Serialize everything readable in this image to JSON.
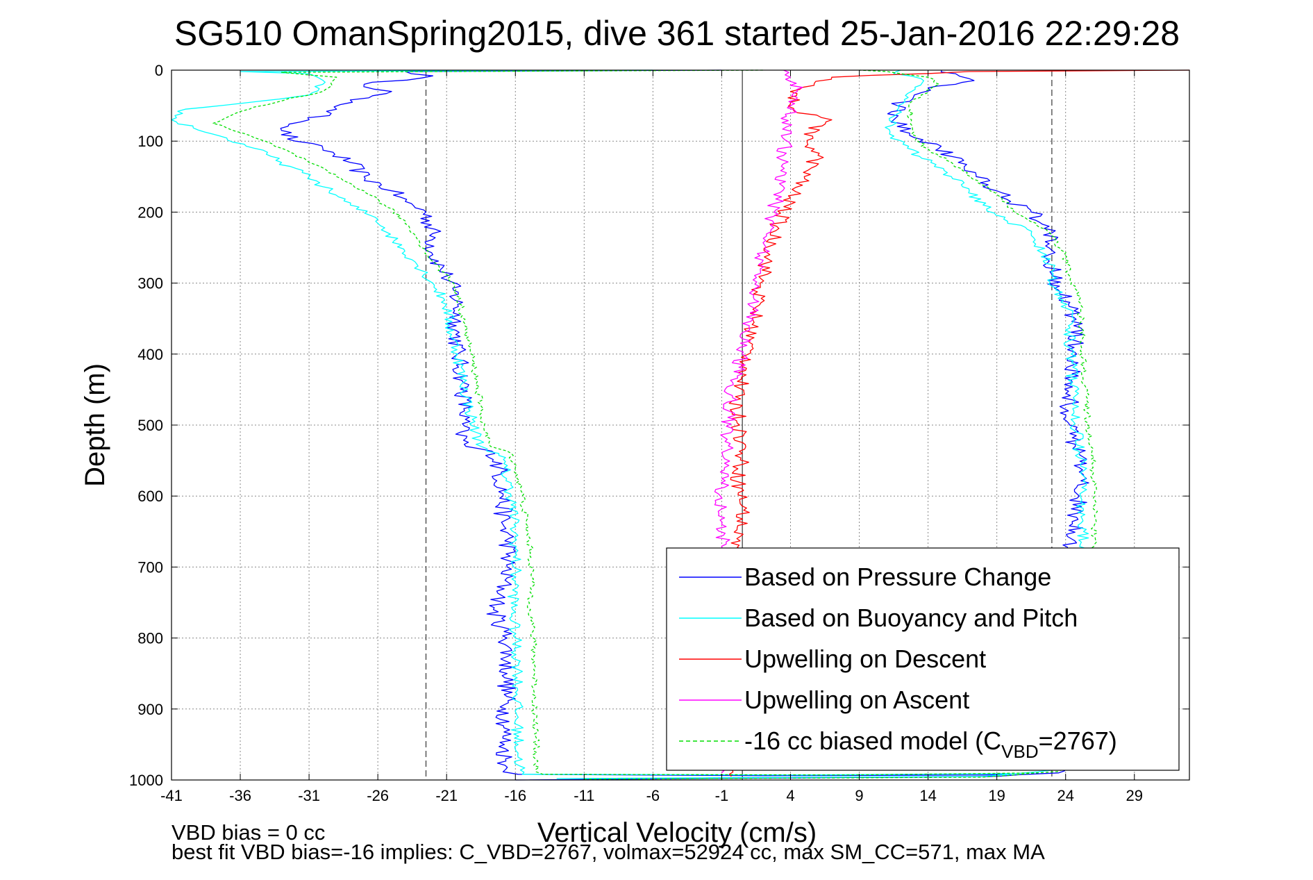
{
  "chart_data": {
    "type": "line",
    "title": "SG510 OmanSpring2015, dive 361 started 25-Jan-2016 22:29:28",
    "xlabel": "Vertical Velocity (cm/s)",
    "ylabel": "Depth (m)",
    "xlim": [
      -41,
      33
    ],
    "ylim": [
      1000,
      0
    ],
    "y_reversed": true,
    "grid": true,
    "x_ticks": [
      -41,
      -36,
      -31,
      -26,
      -21,
      -16,
      -11,
      -6,
      -1,
      4,
      9,
      14,
      19,
      24,
      29
    ],
    "y_ticks": [
      0,
      100,
      200,
      300,
      400,
      500,
      600,
      700,
      800,
      900,
      1000
    ],
    "legend_position": "bottom-right",
    "reference_lines": [
      {
        "kind": "dashed",
        "x": -22.5
      },
      {
        "kind": "solid",
        "x": 0.5
      },
      {
        "kind": "dashed",
        "x": 23
      }
    ],
    "series": [
      {
        "name": "Based on Pressure Change",
        "color": "#0000ff",
        "style": "solid",
        "descent": [
          [
            -1,
            0
          ],
          [
            -24,
            2
          ],
          [
            -22,
            8
          ],
          [
            -27,
            20
          ],
          [
            -25,
            30
          ],
          [
            -28,
            42
          ],
          [
            -29,
            55
          ],
          [
            -31,
            70
          ],
          [
            -33,
            85
          ],
          [
            -32,
            100
          ],
          [
            -30,
            110
          ],
          [
            -28,
            130
          ],
          [
            -27,
            150
          ],
          [
            -25,
            170
          ],
          [
            -24,
            185
          ],
          [
            -22.5,
            200
          ],
          [
            -22,
            230
          ],
          [
            -22,
            260
          ],
          [
            -21,
            290
          ],
          [
            -20.5,
            310
          ],
          [
            -20.2,
            330
          ],
          [
            -20.3,
            360
          ],
          [
            -20.2,
            400
          ],
          [
            -19.8,
            440
          ],
          [
            -19.7,
            480
          ],
          [
            -20,
            510
          ],
          [
            -19.6,
            530
          ],
          [
            -17.5,
            540
          ],
          [
            -17.2,
            560
          ],
          [
            -16.9,
            600
          ],
          [
            -16.9,
            640
          ],
          [
            -16.5,
            660
          ],
          [
            -16.6,
            700
          ],
          [
            -17,
            740
          ],
          [
            -17.6,
            760
          ],
          [
            -16.6,
            800
          ],
          [
            -16.6,
            850
          ],
          [
            -16.7,
            900
          ],
          [
            -16.8,
            950
          ],
          [
            -16.7,
            985
          ],
          [
            -15.8,
            992
          ],
          [
            2,
            994
          ],
          [
            18,
            993
          ],
          [
            20,
            992
          ]
        ],
        "ascent": [
          [
            -16,
            1000
          ],
          [
            19,
            995
          ],
          [
            23.5,
            990
          ],
          [
            24,
            970
          ],
          [
            24.2,
            940
          ],
          [
            24.5,
            900
          ],
          [
            24.5,
            860
          ],
          [
            24.6,
            800
          ],
          [
            24.6,
            760
          ],
          [
            24.8,
            720
          ],
          [
            24.6,
            690
          ],
          [
            24.4,
            660
          ],
          [
            24.8,
            630
          ],
          [
            25,
            600
          ],
          [
            25,
            560
          ],
          [
            24.7,
            530
          ],
          [
            24.3,
            500
          ],
          [
            24.2,
            480
          ],
          [
            24.5,
            440
          ],
          [
            24.8,
            400
          ],
          [
            24.6,
            360
          ],
          [
            24.2,
            330
          ],
          [
            23.5,
            310
          ],
          [
            23.1,
            290
          ],
          [
            22.8,
            260
          ],
          [
            22.8,
            220
          ],
          [
            21.5,
            200
          ],
          [
            20,
            185
          ],
          [
            19,
            170
          ],
          [
            17.5,
            150
          ],
          [
            16.2,
            130
          ],
          [
            14.8,
            110
          ],
          [
            13,
            95
          ],
          [
            11.5,
            70
          ],
          [
            11.8,
            50
          ],
          [
            13,
            35
          ],
          [
            14,
            25
          ],
          [
            16,
            20
          ],
          [
            17,
            12
          ],
          [
            16,
            5
          ],
          [
            15,
            0
          ]
        ]
      },
      {
        "name": "Based on Buoyancy and Pitch",
        "color": "#00ffff",
        "style": "solid",
        "descent": [
          [
            -6,
            0
          ],
          [
            -36,
            2
          ],
          [
            -31,
            5
          ],
          [
            -30,
            20
          ],
          [
            -31,
            35
          ],
          [
            -40,
            55
          ],
          [
            -41,
            70
          ],
          [
            -38,
            90
          ],
          [
            -35,
            110
          ],
          [
            -33,
            130
          ],
          [
            -31,
            150
          ],
          [
            -29.5,
            170
          ],
          [
            -28,
            190
          ],
          [
            -26,
            210
          ],
          [
            -24.8,
            240
          ],
          [
            -23.3,
            270
          ],
          [
            -22,
            300
          ],
          [
            -21,
            330
          ],
          [
            -20.8,
            360
          ],
          [
            -20.2,
            400
          ],
          [
            -19.8,
            440
          ],
          [
            -19.3,
            480
          ],
          [
            -18.9,
            510
          ],
          [
            -18.5,
            530
          ],
          [
            -17.2,
            540
          ],
          [
            -16.8,
            560
          ],
          [
            -16.3,
            600
          ],
          [
            -16.1,
            640
          ],
          [
            -16,
            680
          ],
          [
            -16,
            720
          ],
          [
            -16.2,
            760
          ],
          [
            -16,
            800
          ],
          [
            -15.8,
            850
          ],
          [
            -15.9,
            900
          ],
          [
            -15.8,
            950
          ],
          [
            -15.7,
            980
          ],
          [
            -15.5,
            992
          ],
          [
            5,
            993
          ],
          [
            20,
            991
          ]
        ],
        "ascent": [
          [
            -13,
            998
          ],
          [
            18,
            995
          ],
          [
            23.5,
            985
          ],
          [
            24.5,
            960
          ],
          [
            24.8,
            920
          ],
          [
            24.7,
            880
          ],
          [
            24.8,
            840
          ],
          [
            24.9,
            800
          ],
          [
            25,
            760
          ],
          [
            25,
            720
          ],
          [
            25.2,
            680
          ],
          [
            25.3,
            650
          ],
          [
            25.3,
            620
          ],
          [
            25.1,
            600
          ],
          [
            25.2,
            570
          ],
          [
            25,
            540
          ],
          [
            24.8,
            510
          ],
          [
            24.6,
            480
          ],
          [
            24.5,
            440
          ],
          [
            24.4,
            400
          ],
          [
            24.2,
            360
          ],
          [
            24.1,
            330
          ],
          [
            23.3,
            310
          ],
          [
            23,
            290
          ],
          [
            22.6,
            260
          ],
          [
            21.5,
            230
          ],
          [
            19.5,
            210
          ],
          [
            18,
            190
          ],
          [
            17,
            170
          ],
          [
            15.7,
            150
          ],
          [
            14.2,
            130
          ],
          [
            12.5,
            110
          ],
          [
            11.2,
            90
          ],
          [
            11.5,
            65
          ],
          [
            11.8,
            50
          ],
          [
            12.8,
            30
          ],
          [
            13.5,
            12
          ],
          [
            11.5,
            5
          ],
          [
            12,
            0
          ]
        ]
      },
      {
        "name": "Upwelling on Descent",
        "color": "#ff0000",
        "style": "solid",
        "descent": [
          [
            33,
            0
          ],
          [
            17,
            2
          ],
          [
            7,
            10
          ],
          [
            4,
            30
          ],
          [
            4.5,
            60
          ],
          [
            7,
            70
          ],
          [
            5,
            90
          ],
          [
            6,
            120
          ],
          [
            5,
            150
          ],
          [
            4,
            180
          ],
          [
            3,
            220
          ],
          [
            2.5,
            260
          ],
          [
            1.8,
            300
          ],
          [
            1.5,
            340
          ],
          [
            1,
            380
          ],
          [
            0.8,
            420
          ],
          [
            0,
            460
          ],
          [
            0.3,
            500
          ],
          [
            0.5,
            540
          ],
          [
            0.2,
            580
          ],
          [
            0.6,
            620
          ],
          [
            0.1,
            660
          ],
          [
            0.4,
            700
          ],
          [
            0.2,
            740
          ],
          [
            0.5,
            780
          ],
          [
            0.3,
            820
          ],
          [
            0.1,
            860
          ],
          [
            0.4,
            900
          ],
          [
            0.2,
            940
          ],
          [
            -0.5,
            970
          ],
          [
            -0.3,
            995
          ]
        ]
      },
      {
        "name": "Upwelling on Ascent",
        "color": "#ff00ff",
        "style": "solid",
        "ascent": [
          [
            -1,
            990
          ],
          [
            -1,
            960
          ],
          [
            -0.5,
            920
          ],
          [
            -1.2,
            880
          ],
          [
            -0.8,
            840
          ],
          [
            -1,
            800
          ],
          [
            -1.3,
            760
          ],
          [
            -1,
            720
          ],
          [
            -0.7,
            680
          ],
          [
            -1,
            640
          ],
          [
            -1.1,
            600
          ],
          [
            -0.8,
            560
          ],
          [
            -0.6,
            520
          ],
          [
            -0.5,
            480
          ],
          [
            -0.2,
            440
          ],
          [
            0.5,
            400
          ],
          [
            1,
            360
          ],
          [
            1.3,
            320
          ],
          [
            1.8,
            280
          ],
          [
            2.2,
            240
          ],
          [
            2.8,
            200
          ],
          [
            3.2,
            160
          ],
          [
            3.5,
            120
          ],
          [
            3.7,
            80
          ],
          [
            4,
            50
          ],
          [
            4.5,
            30
          ],
          [
            4,
            10
          ],
          [
            3.5,
            0
          ]
        ]
      },
      {
        "name": "-16 cc biased model (C_VBD=2767)",
        "color": "#00dd00",
        "style": "dashed",
        "descent": [
          [
            2,
            0
          ],
          [
            -33,
            3
          ],
          [
            -29,
            10
          ],
          [
            -30,
            30
          ],
          [
            -35,
            52
          ],
          [
            -38,
            75
          ],
          [
            -35,
            95
          ],
          [
            -33,
            110
          ],
          [
            -31,
            130
          ],
          [
            -29,
            150
          ],
          [
            -27,
            170
          ],
          [
            -25.5,
            190
          ],
          [
            -24.2,
            210
          ],
          [
            -23,
            240
          ],
          [
            -22,
            270
          ],
          [
            -20.5,
            300
          ],
          [
            -20,
            330
          ],
          [
            -19.7,
            360
          ],
          [
            -19.2,
            400
          ],
          [
            -18.8,
            440
          ],
          [
            -18.5,
            480
          ],
          [
            -18.2,
            510
          ],
          [
            -17.8,
            530
          ],
          [
            -16.3,
            540
          ],
          [
            -16,
            560
          ],
          [
            -15.5,
            600
          ],
          [
            -15.2,
            640
          ],
          [
            -14.9,
            680
          ],
          [
            -14.8,
            720
          ],
          [
            -14.9,
            760
          ],
          [
            -14.7,
            800
          ],
          [
            -14.6,
            850
          ],
          [
            -14.6,
            900
          ],
          [
            -14.5,
            950
          ],
          [
            -14.5,
            985
          ],
          [
            -14,
            992
          ],
          [
            8,
            993
          ],
          [
            22,
            990
          ]
        ],
        "ascent": [
          [
            -11,
            999
          ],
          [
            18,
            996
          ],
          [
            23.5,
            988
          ],
          [
            25,
            960
          ],
          [
            25.4,
            920
          ],
          [
            25.5,
            880
          ],
          [
            25.6,
            840
          ],
          [
            25.7,
            800
          ],
          [
            25.8,
            760
          ],
          [
            25.9,
            720
          ],
          [
            26,
            680
          ],
          [
            26.1,
            640
          ],
          [
            26.1,
            600
          ],
          [
            26,
            560
          ],
          [
            25.8,
            530
          ],
          [
            25.6,
            500
          ],
          [
            25.5,
            460
          ],
          [
            25.3,
            420
          ],
          [
            25.2,
            380
          ],
          [
            25.1,
            340
          ],
          [
            24.8,
            310
          ],
          [
            24.3,
            290
          ],
          [
            23.9,
            260
          ],
          [
            22.9,
            230
          ],
          [
            21.2,
            210
          ],
          [
            19.8,
            190
          ],
          [
            18.5,
            170
          ],
          [
            17.1,
            150
          ],
          [
            15.7,
            130
          ],
          [
            13.9,
            110
          ],
          [
            12.8,
            90
          ],
          [
            12.8,
            70
          ],
          [
            12.6,
            50
          ],
          [
            13.5,
            35
          ],
          [
            14.8,
            20
          ],
          [
            14,
            10
          ],
          [
            11,
            2
          ],
          [
            9,
            0
          ]
        ]
      }
    ],
    "legend": [
      {
        "label": "Based on Pressure Change",
        "color": "#0000ff",
        "style": "solid"
      },
      {
        "label": "Based on Buoyancy and Pitch",
        "color": "#00ffff",
        "style": "solid"
      },
      {
        "label": "Upwelling on Descent",
        "color": "#ff0000",
        "style": "solid"
      },
      {
        "label": "Upwelling on Ascent",
        "color": "#ff00ff",
        "style": "solid"
      },
      {
        "label_prefix": "-16 cc biased model (C",
        "label_sub": "VBD",
        "label_suffix": "=2767)",
        "color": "#00dd00",
        "style": "dashed"
      }
    ]
  },
  "footer": {
    "line1": "VBD bias = 0 cc",
    "line2": "best fit VBD bias=-16 implies: C_VBD=2767, volmax=52924 cc, max SM_CC=571, max MA"
  }
}
